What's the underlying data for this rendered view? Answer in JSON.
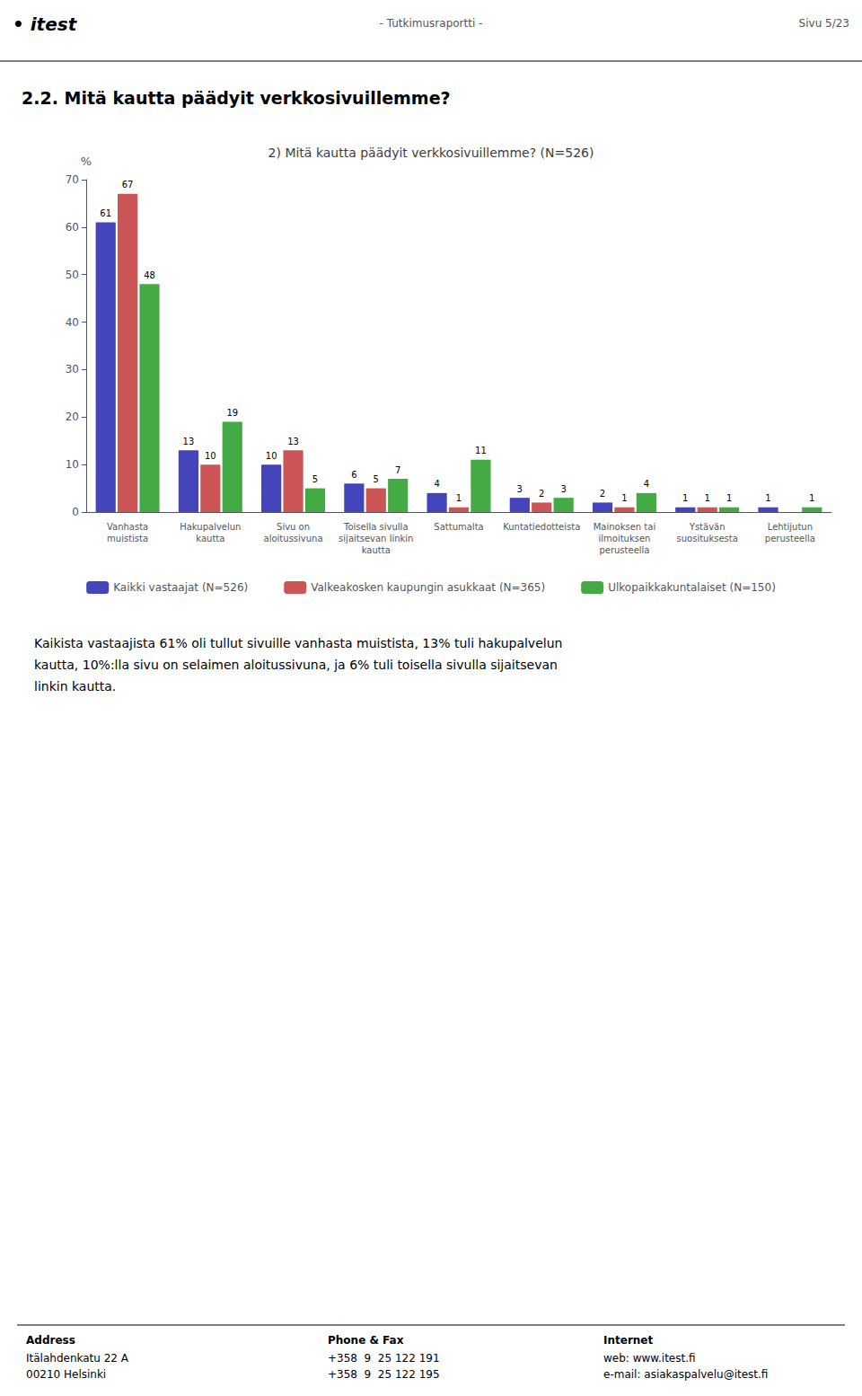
{
  "chart_data": {
    "type": "bar",
    "title": "2) Mitä kautta päädyit verkkosivuillemme? (N=526)",
    "ylabel": "%",
    "categories": [
      "Vanhasta\nmuistista",
      "Hakupalvelun\nkautta",
      "Sivu on\naloitussivuna",
      "Toisella sivulla\nsijaitsevan linkin\nkautta",
      "Sattumalta",
      "Kuntatiedotteista",
      "Mainoksen tai\nilmoituksen\nperusteella",
      "Ystävän\nsuosituksesta",
      "Lehtijutun\nperusteella"
    ],
    "series": [
      {
        "name": "Kaikki vastaajat (N=526)",
        "color": "#4444bb",
        "values": [
          61,
          13,
          10,
          6,
          4,
          3,
          2,
          1,
          1
        ]
      },
      {
        "name": "Valkeakosken kaupungin asukkaat (N=365)",
        "color": "#cc5555",
        "values": [
          67,
          10,
          13,
          5,
          1,
          2,
          1,
          1,
          0
        ],
        "value_labels": [
          "67",
          "10",
          "13",
          "5",
          "1",
          "2",
          "1",
          "1",
          null
        ]
      },
      {
        "name": "Ulkopaikkakuntalaiset (N=150)",
        "color": "#44aa44",
        "values": [
          48,
          19,
          5,
          7,
          11,
          3,
          4,
          1,
          1
        ]
      }
    ],
    "ylim": [
      0,
      70
    ],
    "yticks": [
      0,
      10,
      20,
      30,
      40,
      50,
      60,
      70
    ],
    "grid": false,
    "legend": "bottom",
    "data_labels": true,
    "annotations": [
      "• itest",
      "- Tutkimusraportti -",
      "Sivu 5/23",
      "2.2. Mitä kautta päädyit verkkosivuillemme?",
      "Kaikista vastaajista 61% oli tullut sivuille vanhasta muistista, 13% tuli hakupalvelun\nkautta, 10%:lla sivu on selaimen aloitussivuna, ja 6% tuli toisella sivulla sijaitsevan\nlinkin kautta.",
      "Address",
      "Itälahdenkatu 22 A\n00210 Helsinki",
      "Phone & Fax",
      "+358  9  25 122 191\n+358  9  25 122 195",
      "Internet",
      "web: www.itest.fi\ne-mail: asiakaspalvelu@itest.fi"
    ]
  }
}
